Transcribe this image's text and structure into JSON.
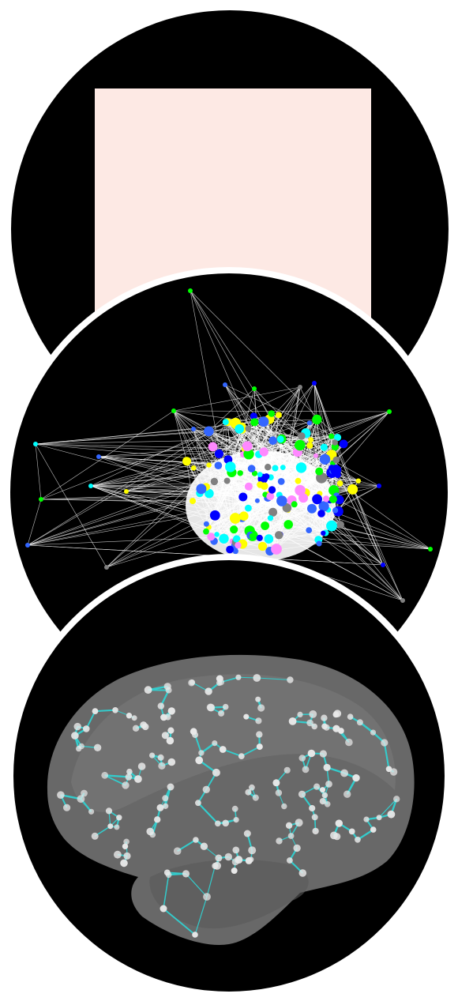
{
  "panels": [
    {
      "id": "connectivity-matrix",
      "icon": "heatmap-matrix",
      "colors": {
        "background": "#000000",
        "cell_low": "#fde9e4",
        "cell_high": "#8b0000"
      }
    },
    {
      "id": "network-graph",
      "icon": "node-link-graph",
      "colors": {
        "background": "#000000",
        "edge": "#ffffff",
        "node_palette": [
          "#00ff00",
          "#0000ff",
          "#ffff00",
          "#ff88ff",
          "#00ffff",
          "#808080",
          "#3366ff"
        ]
      }
    },
    {
      "id": "brain-network",
      "icon": "brain-surface-network",
      "colors": {
        "background": "#000000",
        "brain": "#6e6e6e",
        "node": "#e8e8e8",
        "edge": "#33cccc"
      }
    }
  ],
  "frame_color": "#ffffff"
}
